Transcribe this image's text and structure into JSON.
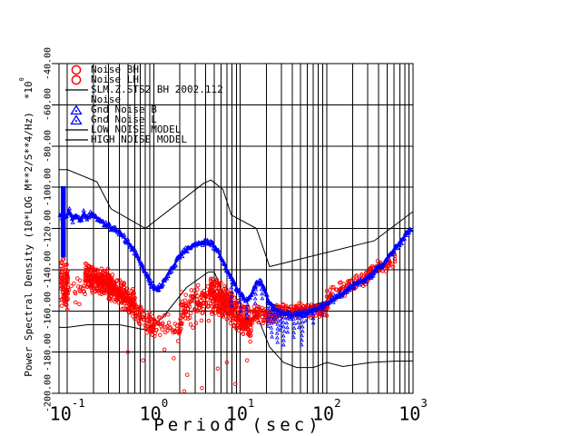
{
  "colors": {
    "red": "#ff0000",
    "blue": "#0000ff",
    "black": "#000000",
    "background": "#ffffff"
  },
  "chart_data": {
    "type": "line",
    "xlabel": "Period (sec)",
    "ylabel": "Power Spectral Density (10*LOG M**2/S**4/Hz)",
    "y_scale_base": "*10",
    "y_scale_exp": "0",
    "x_scale": "log",
    "x_range": [
      0.08,
      1000
    ],
    "y_range": [
      -200,
      -40
    ],
    "grid": "full vertical lines at every log minor tick; horizontal lines every 20 dB",
    "x_ticks": [
      {
        "base": "10",
        "exp": "-1",
        "value": 0.1
      },
      {
        "base": "10",
        "exp": "0",
        "value": 1
      },
      {
        "base": "10",
        "exp": "1",
        "value": 10
      },
      {
        "base": "10",
        "exp": "2",
        "value": 100
      },
      {
        "base": "10",
        "exp": "3",
        "value": 1000
      }
    ],
    "y_ticks": [
      {
        "label": "-200.00",
        "value": -200
      },
      {
        "label": "-180.00",
        "value": -180
      },
      {
        "label": "-160.00",
        "value": -160
      },
      {
        "label": "-140.00",
        "value": -140
      },
      {
        "label": "-120.00",
        "value": -120
      },
      {
        "label": "-100.00",
        "value": -100
      },
      {
        "label": "-80.00",
        "value": -80
      },
      {
        "label": "-60.00",
        "value": -60
      },
      {
        "label": "-40.00",
        "value": -40
      }
    ],
    "legend": {
      "position": "top-left",
      "items": [
        {
          "label": "Noise BH",
          "marker": "circle",
          "color": "#ff0000"
        },
        {
          "label": "Noise LH",
          "marker": "circle",
          "color": "#ff0000"
        },
        {
          "label": "SLM.Z.STS2 BH 2002.112",
          "marker": "line",
          "color": "#000000"
        },
        {
          "label": "Noise",
          "marker": "none",
          "color": "#000000"
        },
        {
          "label": "Gnd Noise B",
          "marker": "triangle",
          "color": "#0000ff"
        },
        {
          "label": "Gnd Noise L",
          "marker": "triangle",
          "color": "#0000ff"
        },
        {
          "label": "LOW NOISE MODEL",
          "marker": "line",
          "color": "#000000"
        },
        {
          "label": "HIGH NOISE MODEL",
          "marker": "line",
          "color": "#000000"
        }
      ]
    },
    "series": {
      "low_noise_model": {
        "name": "LOW NOISE MODEL",
        "color": "#000000",
        "style": "line",
        "points": [
          [
            0.08,
            -168
          ],
          [
            0.1,
            -168
          ],
          [
            0.17,
            -166.7
          ],
          [
            0.4,
            -166.7
          ],
          [
            0.8,
            -169.2
          ],
          [
            1.24,
            -163.7
          ],
          [
            2.4,
            -148.6
          ],
          [
            4.3,
            -141.1
          ],
          [
            5,
            -141.1
          ],
          [
            6,
            -149
          ],
          [
            10,
            -163.8
          ],
          [
            12,
            -166.2
          ],
          [
            15.6,
            -162.1
          ],
          [
            21.9,
            -177.5
          ],
          [
            31.6,
            -185
          ],
          [
            45,
            -187.5
          ],
          [
            70,
            -187.5
          ],
          [
            101,
            -185
          ],
          [
            154,
            -187
          ],
          [
            328,
            -185
          ],
          [
            600,
            -184.4
          ],
          [
            1000,
            -184.3
          ]
        ]
      },
      "high_noise_model": {
        "name": "HIGH NOISE MODEL",
        "color": "#000000",
        "style": "line",
        "points": [
          [
            0.08,
            -91.5
          ],
          [
            0.1,
            -91.5
          ],
          [
            0.22,
            -97.4
          ],
          [
            0.32,
            -110.5
          ],
          [
            0.8,
            -120
          ],
          [
            3.8,
            -98
          ],
          [
            4.6,
            -96.5
          ],
          [
            6.3,
            -101
          ],
          [
            7.9,
            -113.5
          ],
          [
            15.4,
            -120
          ],
          [
            21.9,
            -138.5
          ],
          [
            354.8,
            -126
          ],
          [
            1000,
            -111.8
          ]
        ]
      },
      "noise_hidden": {
        "name": "Noise",
        "color": "#000000",
        "style": "line",
        "points": [
          [
            22,
            -156.5
          ],
          [
            30,
            -158
          ],
          [
            45,
            -159
          ],
          [
            60,
            -158
          ],
          [
            80,
            -156.5
          ],
          [
            100,
            -155.5
          ]
        ]
      },
      "gnd_noise": {
        "name": "Gnd Noise",
        "color": "#0000ff",
        "style": "triangle-band",
        "left_bar": {
          "p1": 0.084,
          "p2": 0.096,
          "db_top": -99.5,
          "db_bottom": -134
        },
        "backbone": [
          [
            0.082,
            -113
          ],
          [
            0.09,
            -116
          ],
          [
            0.098,
            -113.5
          ],
          [
            0.105,
            -111.5
          ],
          [
            0.115,
            -116
          ],
          [
            0.125,
            -113.5
          ],
          [
            0.14,
            -116.5
          ],
          [
            0.155,
            -112.5
          ],
          [
            0.17,
            -115.5
          ],
          [
            0.19,
            -112.5
          ],
          [
            0.21,
            -114.5
          ],
          [
            0.24,
            -116
          ],
          [
            0.27,
            -118
          ],
          [
            0.31,
            -119.5
          ],
          [
            0.37,
            -121
          ],
          [
            0.45,
            -124
          ],
          [
            0.55,
            -129
          ],
          [
            0.65,
            -134
          ],
          [
            0.75,
            -139
          ],
          [
            0.85,
            -144
          ],
          [
            0.95,
            -147.5
          ],
          [
            1.05,
            -149.5
          ],
          [
            1.2,
            -148
          ],
          [
            1.4,
            -143.5
          ],
          [
            1.7,
            -138
          ],
          [
            2.0,
            -133.5
          ],
          [
            2.4,
            -130
          ],
          [
            2.9,
            -128
          ],
          [
            3.4,
            -127.2
          ],
          [
            4.0,
            -126.8
          ],
          [
            4.6,
            -127.3
          ],
          [
            5.2,
            -129.5
          ],
          [
            6.0,
            -134
          ],
          [
            7.0,
            -140
          ],
          [
            8.0,
            -144.5
          ],
          [
            9.0,
            -148.5
          ],
          [
            10.0,
            -151.5
          ],
          [
            11.0,
            -154
          ],
          [
            12.0,
            -155
          ],
          [
            13.0,
            -153.5
          ],
          [
            14.5,
            -148.5
          ],
          [
            16.0,
            -146
          ],
          [
            17.5,
            -146.5
          ],
          [
            19.0,
            -149.5
          ],
          [
            20.5,
            -153.5
          ],
          [
            22.0,
            -156.5
          ],
          [
            25.0,
            -159
          ],
          [
            28.0,
            -160.5
          ],
          [
            33.0,
            -161.5
          ],
          [
            40.0,
            -162
          ],
          [
            50.0,
            -161.5
          ],
          [
            65.0,
            -160
          ],
          [
            80.0,
            -158.5
          ],
          [
            100.0,
            -156.5
          ],
          [
            120.0,
            -154.5
          ],
          [
            150.0,
            -151.5
          ],
          [
            200.0,
            -148
          ],
          [
            250.0,
            -146
          ],
          [
            300.0,
            -144
          ],
          [
            350.0,
            -141.5
          ],
          [
            400.0,
            -139
          ],
          [
            450.0,
            -137
          ],
          [
            500.0,
            -135
          ],
          [
            560.0,
            -132
          ],
          [
            620.0,
            -129.5
          ],
          [
            700.0,
            -127
          ],
          [
            800.0,
            -124
          ],
          [
            900.0,
            -121.8
          ],
          [
            950.0,
            -120.8
          ]
        ],
        "spikes": [
          [
            8,
            -158
          ],
          [
            10,
            -161
          ],
          [
            12,
            -164
          ],
          [
            15,
            -158
          ],
          [
            18,
            -156
          ],
          [
            21,
            -168
          ],
          [
            23,
            -173
          ],
          [
            25,
            -166
          ],
          [
            27,
            -176
          ],
          [
            29,
            -170
          ],
          [
            32,
            -178
          ],
          [
            35,
            -171
          ],
          [
            38,
            -166
          ],
          [
            42,
            -174
          ],
          [
            47,
            -169
          ],
          [
            52,
            -177
          ],
          [
            58,
            -167
          ],
          [
            70,
            -166
          ],
          [
            90,
            -163.5
          ]
        ]
      },
      "station_noise": {
        "name": "Noise BH/LH",
        "color": "#ff0000",
        "style": "open-circle-scatter",
        "cluster_fields": [
          "p_min",
          "p_max",
          "db_center_start",
          "db_center_end",
          "db_spread",
          "n_points"
        ],
        "clusters": [
          [
            0.084,
            0.102,
            -146,
            -149,
            8,
            85
          ],
          [
            0.095,
            0.16,
            -149,
            -151,
            5,
            22
          ],
          [
            0.16,
            0.32,
            -143.5,
            -147,
            4.5,
            260
          ],
          [
            0.3,
            0.62,
            -148,
            -157,
            4.5,
            230
          ],
          [
            0.6,
            1.05,
            -161,
            -168,
            4,
            70
          ],
          [
            1.0,
            2.1,
            -167,
            -169,
            4.5,
            40
          ],
          [
            2.0,
            4.8,
            -162,
            -153,
            7,
            110
          ],
          [
            4.5,
            8.0,
            -151.5,
            -158,
            6,
            210
          ],
          [
            8.0,
            13.5,
            -160,
            -167.5,
            6,
            150
          ],
          [
            13,
            26,
            -162,
            -162,
            3,
            80
          ],
          [
            25,
            105,
            -160,
            -159.5,
            2.5,
            170
          ],
          [
            100,
            300,
            -153,
            -143.5,
            2.5,
            80
          ],
          [
            280,
            620,
            -142,
            -136,
            2.5,
            60
          ]
        ],
        "outliers": [
          [
            1.33,
            -178.8
          ],
          [
            1.7,
            -183
          ],
          [
            2.44,
            -191
          ],
          [
            2.25,
            -199
          ],
          [
            3.6,
            -197.5
          ],
          [
            8.8,
            -195.5
          ],
          [
            5.5,
            -188
          ],
          [
            7,
            -185
          ],
          [
            12,
            -184
          ],
          [
            0.75,
            -184
          ],
          [
            0.5,
            -180
          ]
        ]
      }
    }
  }
}
